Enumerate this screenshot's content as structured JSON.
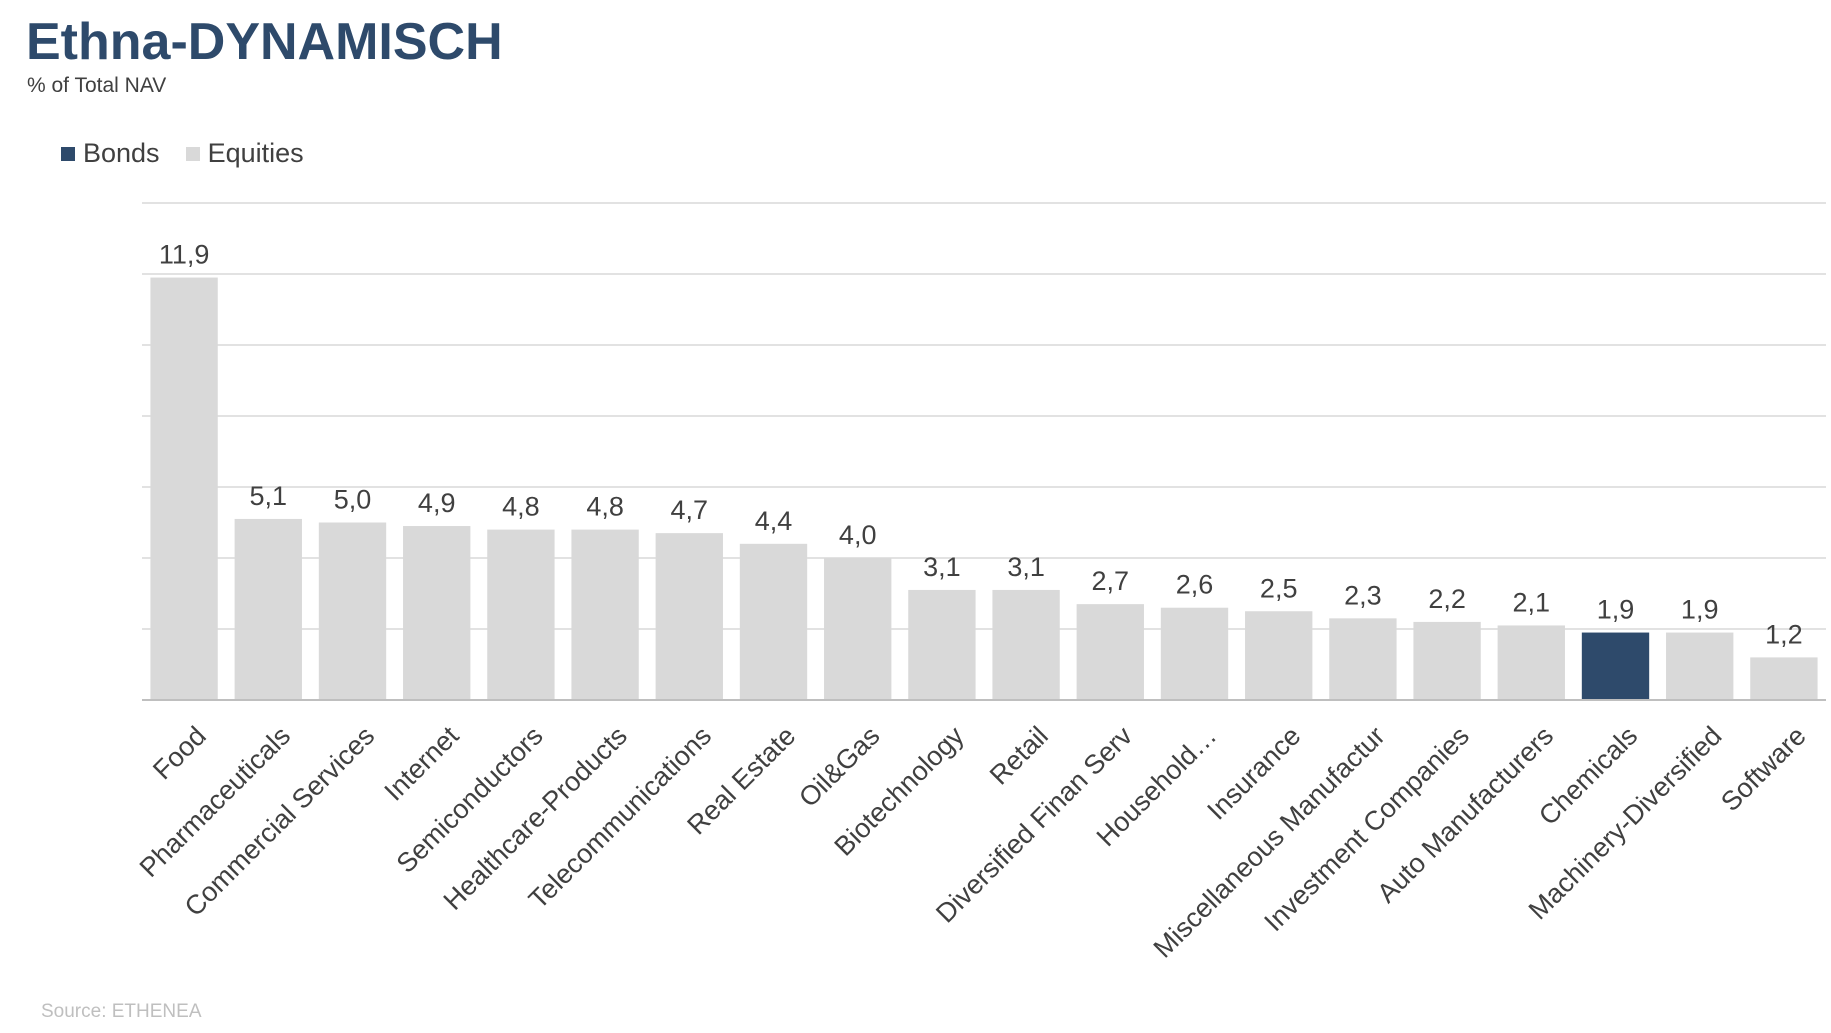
{
  "header": {
    "title": "Ethna-DYNAMISCH",
    "subtitle": "% of Total NAV"
  },
  "source": "Source: ETHENEA",
  "colors": {
    "bonds": "#2e4a6b",
    "equities": "#d9d9d9",
    "gridline": "#d9d9d9",
    "axis": "#bfbfbf"
  },
  "chart_data": {
    "type": "bar",
    "title": "Ethna-DYNAMISCH",
    "subtitle": "% of Total NAV",
    "xlabel": "",
    "ylabel": "",
    "ylim": [
      0,
      14
    ],
    "grid": true,
    "legend_position": "top-left",
    "legend": [
      {
        "name": "Bonds",
        "color": "#2e4a6b"
      },
      {
        "name": "Equities",
        "color": "#d9d9d9"
      }
    ],
    "categories": [
      "Food",
      "Pharmaceuticals",
      "Commercial Services",
      "Internet",
      "Semiconductors",
      "Healthcare-Products",
      "Telecommunications",
      "Real Estate",
      "Oil&Gas",
      "Biotechnology",
      "Retail",
      "Diversified Finan Serv",
      "Household…",
      "Insurance",
      "Miscellaneous Manufactur",
      "Investment Companies",
      "Auto Manufacturers",
      "Chemicals",
      "Machinery-Diversified",
      "Software"
    ],
    "values": [
      11.9,
      5.1,
      5.0,
      4.9,
      4.8,
      4.8,
      4.7,
      4.4,
      4.0,
      3.1,
      3.1,
      2.7,
      2.6,
      2.5,
      2.3,
      2.2,
      2.1,
      1.9,
      1.9,
      1.2
    ],
    "value_labels": [
      "11,9",
      "5,1",
      "5,0",
      "4,9",
      "4,8",
      "4,8",
      "4,7",
      "4,4",
      "4,0",
      "3,1",
      "3,1",
      "2,7",
      "2,6",
      "2,5",
      "2,3",
      "2,2",
      "2,1",
      "1,9",
      "1,9",
      "1,2"
    ],
    "bar_series": [
      "Equities",
      "Equities",
      "Equities",
      "Equities",
      "Equities",
      "Equities",
      "Equities",
      "Equities",
      "Equities",
      "Equities",
      "Equities",
      "Equities",
      "Equities",
      "Equities",
      "Equities",
      "Equities",
      "Equities",
      "Bonds",
      "Equities",
      "Equities"
    ]
  }
}
